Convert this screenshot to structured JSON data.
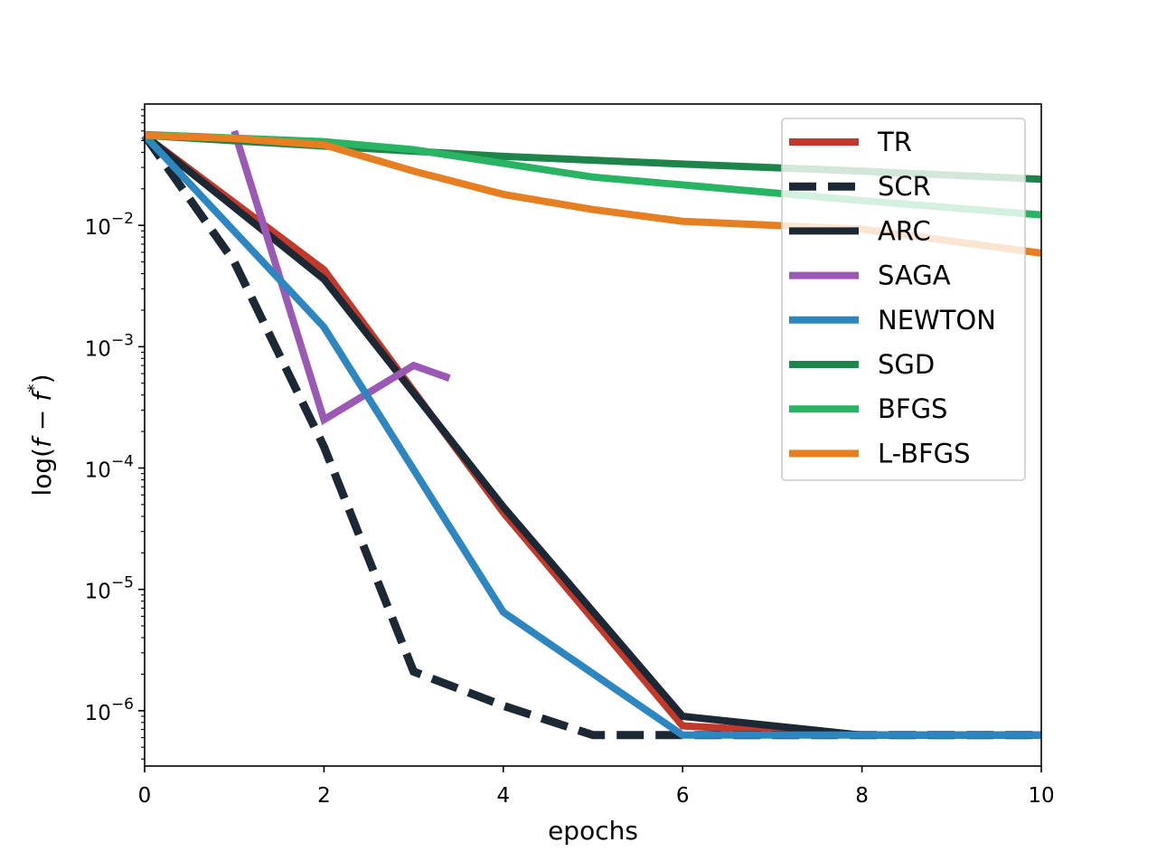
{
  "chart_data": {
    "type": "line",
    "xlabel": "epochs",
    "ylabel": "log(f − f*)",
    "xlim": [
      0,
      10
    ],
    "ylim": [
      3.5e-07,
      0.1
    ],
    "yscale": "log",
    "legend_position": "top-right",
    "x_ticks": [
      {
        "value": 0,
        "label": "0"
      },
      {
        "value": 2,
        "label": "2"
      },
      {
        "value": 4,
        "label": "4"
      },
      {
        "value": 6,
        "label": "6"
      },
      {
        "value": 8,
        "label": "8"
      },
      {
        "value": 10,
        "label": "10"
      }
    ],
    "y_ticks": [
      {
        "value": 0.01,
        "base": "10",
        "exp": "−2"
      },
      {
        "value": 0.001,
        "base": "10",
        "exp": "−3"
      },
      {
        "value": 0.0001,
        "base": "10",
        "exp": "−4"
      },
      {
        "value": 1e-05,
        "base": "10",
        "exp": "−5"
      },
      {
        "value": 1e-06,
        "base": "10",
        "exp": "−6"
      }
    ],
    "series": [
      {
        "name": "TR",
        "color": "#c0392b",
        "dashed": false,
        "x": [
          0,
          2,
          4,
          6,
          8,
          10
        ],
        "y": [
          0.055,
          0.0043,
          4.3e-05,
          7.5e-07,
          6.3e-07,
          6.3e-07
        ]
      },
      {
        "name": "SCR",
        "color": "#1c2833",
        "dashed": true,
        "x": [
          0,
          1,
          2,
          3,
          4,
          5,
          6,
          8,
          10
        ],
        "y": [
          0.055,
          0.005,
          0.00015,
          2.1e-06,
          1.1e-06,
          6.3e-07,
          6.3e-07,
          6.3e-07,
          6.3e-07
        ]
      },
      {
        "name": "ARC",
        "color": "#1c2833",
        "dashed": false,
        "x": [
          0,
          2,
          4,
          6,
          8,
          10
        ],
        "y": [
          0.055,
          0.0036,
          4.8e-05,
          9e-07,
          6.3e-07,
          6.3e-07
        ]
      },
      {
        "name": "SAGA",
        "color": "#9b59b6",
        "dashed": false,
        "x": [
          1,
          2,
          3,
          3.4
        ],
        "y": [
          0.06,
          0.00025,
          0.0007,
          0.00055
        ]
      },
      {
        "name": "NEWTON",
        "color": "#2e86c1",
        "dashed": false,
        "x": [
          0,
          2,
          4,
          6,
          8,
          10
        ],
        "y": [
          0.055,
          0.00145,
          6.5e-06,
          6.3e-07,
          6.3e-07,
          6.3e-07
        ]
      },
      {
        "name": "SGD",
        "color": "#1e8449",
        "dashed": false,
        "x": [
          0,
          2,
          4,
          6,
          8,
          10
        ],
        "y": [
          0.055,
          0.045,
          0.037,
          0.032,
          0.028,
          0.024
        ]
      },
      {
        "name": "BFGS",
        "color": "#28b463",
        "dashed": false,
        "x": [
          0,
          2,
          3,
          5,
          8,
          10
        ],
        "y": [
          0.056,
          0.049,
          0.042,
          0.025,
          0.016,
          0.0122
        ]
      },
      {
        "name": "L-BFGS",
        "color": "#e67e22",
        "dashed": false,
        "x": [
          0,
          1,
          2,
          3,
          4,
          5,
          6,
          8,
          10
        ],
        "y": [
          0.055,
          0.052,
          0.046,
          0.028,
          0.018,
          0.0135,
          0.0108,
          0.0093,
          0.0059
        ]
      }
    ]
  }
}
